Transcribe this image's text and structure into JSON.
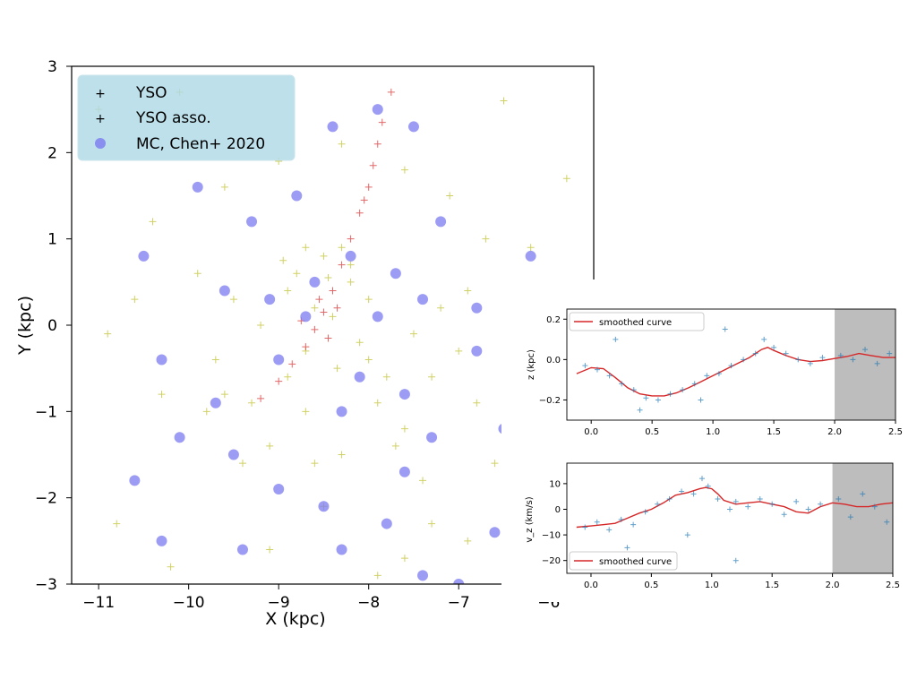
{
  "chart_data": [
    {
      "type": "scatter",
      "xlabel": "X (kpc)",
      "ylabel": "Y (kpc)",
      "xlim": [
        -11.3,
        -5.5
      ],
      "ylim": [
        -3,
        3
      ],
      "xticks": [
        -11,
        -10,
        -9,
        -8,
        -7,
        -6
      ],
      "xtick_labels": [
        "−11",
        "−10",
        "−9",
        "−8",
        "−7",
        "−6"
      ],
      "yticks": [
        -3,
        -2,
        -1,
        0,
        1,
        2,
        3
      ],
      "ytick_labels": [
        "−3",
        "−2",
        "−1",
        "0",
        "1",
        "2",
        "3"
      ],
      "legend_position": "top-left",
      "series": [
        {
          "name": "YSO",
          "marker": "plus",
          "color": "#bcbd22",
          "points": [
            [
              -8.5,
              0.8
            ],
            [
              -8.8,
              0.6
            ],
            [
              -8.3,
              0.9
            ],
            [
              -8.9,
              0.4
            ],
            [
              -8.2,
              0.5
            ],
            [
              -8.6,
              0.2
            ],
            [
              -8.4,
              0.1
            ],
            [
              -8.1,
              -0.2
            ],
            [
              -8.0,
              -0.4
            ],
            [
              -7.8,
              -0.6
            ],
            [
              -8.7,
              -0.3
            ],
            [
              -8.9,
              -0.6
            ],
            [
              -9.2,
              0.0
            ],
            [
              -9.5,
              0.3
            ],
            [
              -9.9,
              0.6
            ],
            [
              -9.7,
              -0.4
            ],
            [
              -7.5,
              -0.1
            ],
            [
              -7.2,
              0.2
            ],
            [
              -6.9,
              0.4
            ],
            [
              -7.0,
              -0.3
            ],
            [
              -7.6,
              -1.2
            ],
            [
              -7.4,
              -1.8
            ],
            [
              -7.3,
              -2.3
            ],
            [
              -7.6,
              -2.7
            ],
            [
              -8.3,
              -1.5
            ],
            [
              -8.5,
              -2.1
            ],
            [
              -8.7,
              -1.0
            ],
            [
              -9.1,
              -1.4
            ],
            [
              -9.4,
              -1.6
            ],
            [
              -9.8,
              -1.0
            ],
            [
              -10.3,
              -0.8
            ],
            [
              -10.6,
              0.3
            ],
            [
              -10.9,
              -0.1
            ],
            [
              -10.4,
              1.2
            ],
            [
              -9.6,
              1.6
            ],
            [
              -9.0,
              1.9
            ],
            [
              -8.3,
              2.1
            ],
            [
              -7.6,
              1.8
            ],
            [
              -7.1,
              1.5
            ],
            [
              -6.7,
              1.0
            ],
            [
              -6.2,
              0.9
            ],
            [
              -5.9,
              0.0
            ],
            [
              -6.3,
              -0.9
            ],
            [
              -6.6,
              -1.6
            ],
            [
              -6.1,
              -2.0
            ],
            [
              -10.8,
              -2.3
            ],
            [
              -10.2,
              -2.8
            ],
            [
              -9.1,
              -2.6
            ],
            [
              -7.9,
              -2.9
            ],
            [
              -6.9,
              -2.5
            ],
            [
              -11.0,
              2.5
            ],
            [
              -10.1,
              2.7
            ],
            [
              -6.5,
              2.6
            ],
            [
              -5.8,
              1.7
            ],
            [
              -8.2,
              0.7
            ],
            [
              -8.7,
              0.9
            ],
            [
              -8.95,
              0.75
            ],
            [
              -8.45,
              0.55
            ],
            [
              -8.0,
              0.3
            ],
            [
              -8.35,
              -0.5
            ],
            [
              -7.9,
              -0.9
            ],
            [
              -7.7,
              -1.4
            ],
            [
              -8.6,
              -1.6
            ],
            [
              -7.3,
              -0.6
            ],
            [
              -6.8,
              -0.9
            ],
            [
              -9.3,
              -0.9
            ],
            [
              -9.6,
              -0.8
            ]
          ]
        },
        {
          "name": "YSO asso.",
          "marker": "plus",
          "color": "#d62728",
          "points": [
            [
              -9.2,
              -0.85
            ],
            [
              -9.0,
              -0.65
            ],
            [
              -8.85,
              -0.45
            ],
            [
              -8.7,
              -0.25
            ],
            [
              -8.6,
              -0.05
            ],
            [
              -8.5,
              0.15
            ],
            [
              -8.4,
              0.4
            ],
            [
              -8.3,
              0.7
            ],
            [
              -8.2,
              1.0
            ],
            [
              -8.1,
              1.3
            ],
            [
              -8.0,
              1.6
            ],
            [
              -7.95,
              1.85
            ],
            [
              -7.9,
              2.1
            ],
            [
              -7.85,
              2.35
            ],
            [
              -7.75,
              2.7
            ],
            [
              -8.75,
              0.05
            ],
            [
              -8.55,
              0.3
            ],
            [
              -8.35,
              0.2
            ],
            [
              -8.45,
              -0.15
            ],
            [
              -8.05,
              1.45
            ]
          ]
        },
        {
          "name": "MC, Chen+ 2020",
          "marker": "circle",
          "color": "#7b7bf0",
          "points": [
            [
              -9.9,
              1.6
            ],
            [
              -10.5,
              0.8
            ],
            [
              -10.3,
              -0.4
            ],
            [
              -10.1,
              -1.3
            ],
            [
              -9.5,
              -1.5
            ],
            [
              -9.0,
              -1.9
            ],
            [
              -8.5,
              -2.1
            ],
            [
              -8.3,
              -2.6
            ],
            [
              -7.8,
              -2.3
            ],
            [
              -7.4,
              -2.9
            ],
            [
              -7.0,
              -3.0
            ],
            [
              -6.6,
              -2.4
            ],
            [
              -6.0,
              -1.0
            ],
            [
              -6.0,
              0.3
            ],
            [
              -6.2,
              0.8
            ],
            [
              -7.2,
              1.2
            ],
            [
              -7.5,
              2.3
            ],
            [
              -7.9,
              2.5
            ],
            [
              -8.4,
              2.3
            ],
            [
              -8.8,
              1.5
            ],
            [
              -9.3,
              1.2
            ],
            [
              -8.6,
              0.5
            ],
            [
              -8.2,
              0.8
            ],
            [
              -7.7,
              0.6
            ],
            [
              -7.9,
              0.1
            ],
            [
              -8.7,
              0.1
            ],
            [
              -9.0,
              -0.4
            ],
            [
              -8.1,
              -0.6
            ],
            [
              -7.6,
              -0.8
            ],
            [
              -7.3,
              -1.3
            ],
            [
              -9.7,
              -0.9
            ],
            [
              -10.6,
              -1.8
            ],
            [
              -10.3,
              -2.5
            ],
            [
              -9.4,
              -2.6
            ],
            [
              -7.6,
              -1.7
            ],
            [
              -6.8,
              -0.3
            ],
            [
              -6.5,
              -1.2
            ],
            [
              -9.1,
              0.3
            ],
            [
              -9.6,
              0.4
            ],
            [
              -8.3,
              -1.0
            ],
            [
              -7.4,
              0.3
            ],
            [
              -6.8,
              0.2
            ]
          ]
        }
      ]
    },
    {
      "type": "scatter",
      "xlabel": "",
      "ylabel": "z (kpc)",
      "xlim": [
        -0.2,
        2.5
      ],
      "ylim": [
        -0.3,
        0.25
      ],
      "xticks": [
        0.0,
        0.5,
        1.0,
        1.5,
        2.0,
        2.5
      ],
      "xtick_labels": [
        "0.0",
        "0.5",
        "1.0",
        "1.5",
        "2.0",
        "2.5"
      ],
      "yticks": [
        -0.2,
        0.0,
        0.2
      ],
      "ytick_labels": [
        "−0.2",
        "0.0",
        "0.2"
      ],
      "shaded_x_range": [
        2.0,
        2.5
      ],
      "legend_position": "top-left",
      "series": [
        {
          "name": "smoothed curve",
          "type": "line",
          "color": "#d62728",
          "x": [
            -0.12,
            0.0,
            0.1,
            0.2,
            0.3,
            0.4,
            0.5,
            0.6,
            0.7,
            0.8,
            0.9,
            1.0,
            1.1,
            1.2,
            1.3,
            1.4,
            1.45,
            1.5,
            1.6,
            1.7,
            1.8,
            1.9,
            2.0,
            2.1,
            2.2,
            2.3,
            2.4,
            2.5
          ],
          "y": [
            -0.07,
            -0.04,
            -0.045,
            -0.09,
            -0.14,
            -0.17,
            -0.18,
            -0.18,
            -0.165,
            -0.14,
            -0.11,
            -0.08,
            -0.05,
            -0.02,
            0.01,
            0.05,
            0.06,
            0.045,
            0.02,
            0.0,
            -0.01,
            -0.005,
            0.005,
            0.015,
            0.03,
            0.02,
            0.01,
            0.01
          ]
        },
        {
          "name": "",
          "type": "scatter",
          "marker": "plus",
          "color": "#1f77b4",
          "points": [
            [
              -0.05,
              -0.03
            ],
            [
              0.05,
              -0.05
            ],
            [
              0.15,
              -0.08
            ],
            [
              0.25,
              -0.12
            ],
            [
              0.35,
              -0.15
            ],
            [
              0.45,
              -0.19
            ],
            [
              0.55,
              -0.2
            ],
            [
              0.65,
              -0.17
            ],
            [
              0.75,
              -0.15
            ],
            [
              0.85,
              -0.12
            ],
            [
              0.95,
              -0.08
            ],
            [
              1.05,
              -0.07
            ],
            [
              1.15,
              -0.03
            ],
            [
              1.25,
              0.0
            ],
            [
              1.35,
              0.03
            ],
            [
              1.42,
              0.1
            ],
            [
              1.5,
              0.06
            ],
            [
              1.6,
              0.03
            ],
            [
              1.7,
              0.0
            ],
            [
              1.8,
              -0.02
            ],
            [
              1.9,
              0.01
            ],
            [
              2.05,
              0.02
            ],
            [
              2.15,
              0.0
            ],
            [
              2.25,
              0.05
            ],
            [
              2.35,
              -0.02
            ],
            [
              2.45,
              0.03
            ],
            [
              0.4,
              -0.25
            ],
            [
              0.9,
              -0.2
            ],
            [
              0.2,
              0.1
            ],
            [
              1.1,
              0.15
            ]
          ]
        }
      ]
    },
    {
      "type": "scatter",
      "xlabel": "",
      "ylabel": "v_z (km/s)",
      "xlim": [
        -0.2,
        2.5
      ],
      "ylim": [
        -25,
        18
      ],
      "xticks": [
        0.0,
        0.5,
        1.0,
        1.5,
        2.0,
        2.5
      ],
      "xtick_labels": [
        "0.0",
        "0.5",
        "1.0",
        "1.5",
        "2.0",
        "2.5"
      ],
      "yticks": [
        -20,
        -10,
        0,
        10
      ],
      "ytick_labels": [
        "−20",
        "−10",
        "0",
        "10"
      ],
      "shaded_x_range": [
        2.0,
        2.5
      ],
      "legend_position": "bottom-left",
      "series": [
        {
          "name": "smoothed curve",
          "type": "line",
          "color": "#d62728",
          "x": [
            -0.12,
            0.0,
            0.1,
            0.2,
            0.3,
            0.4,
            0.5,
            0.6,
            0.7,
            0.8,
            0.9,
            0.95,
            1.0,
            1.05,
            1.1,
            1.2,
            1.3,
            1.4,
            1.5,
            1.6,
            1.7,
            1.8,
            1.9,
            2.0,
            2.1,
            2.2,
            2.3,
            2.4,
            2.5
          ],
          "y": [
            -7,
            -6.5,
            -6,
            -5.5,
            -3.5,
            -1.5,
            0,
            2.5,
            5.5,
            6.5,
            8,
            8.5,
            8,
            6,
            3.5,
            2,
            2.5,
            3,
            2,
            1,
            -1,
            -1.5,
            1,
            2.5,
            2,
            1,
            1,
            2,
            2.5
          ]
        },
        {
          "name": "",
          "type": "scatter",
          "marker": "plus",
          "color": "#1f77b4",
          "points": [
            [
              -0.05,
              -7
            ],
            [
              0.05,
              -5
            ],
            [
              0.15,
              -8
            ],
            [
              0.25,
              -4
            ],
            [
              0.35,
              -6
            ],
            [
              0.45,
              -1
            ],
            [
              0.55,
              2
            ],
            [
              0.65,
              4
            ],
            [
              0.75,
              7
            ],
            [
              0.85,
              6
            ],
            [
              0.92,
              12
            ],
            [
              0.97,
              9
            ],
            [
              1.05,
              4
            ],
            [
              1.15,
              0
            ],
            [
              1.2,
              3
            ],
            [
              1.3,
              1
            ],
            [
              1.4,
              4
            ],
            [
              1.5,
              2
            ],
            [
              1.6,
              -2
            ],
            [
              1.7,
              3
            ],
            [
              1.8,
              0
            ],
            [
              1.9,
              2
            ],
            [
              2.05,
              4
            ],
            [
              2.15,
              -3
            ],
            [
              2.25,
              6
            ],
            [
              2.35,
              1
            ],
            [
              2.45,
              -5
            ],
            [
              0.3,
              -15
            ],
            [
              1.2,
              -20
            ],
            [
              0.8,
              -10
            ]
          ]
        }
      ]
    }
  ]
}
